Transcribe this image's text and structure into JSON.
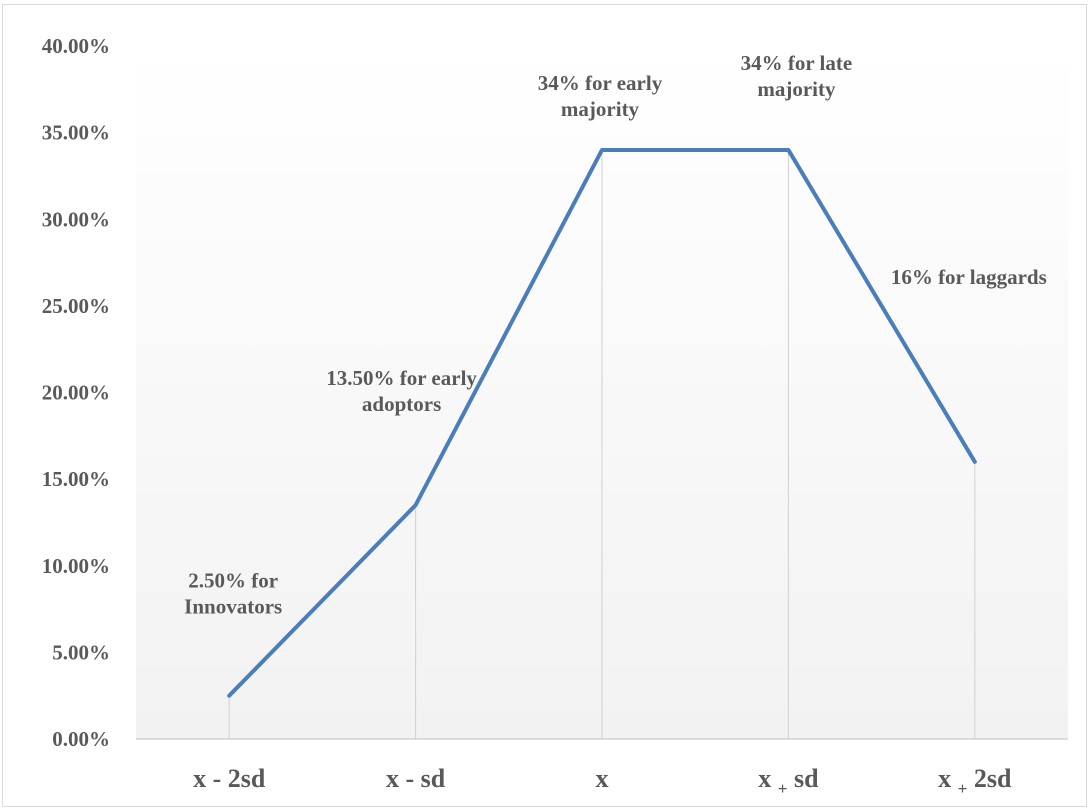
{
  "chart_data": {
    "type": "line",
    "categories": [
      {
        "main": "x - 2sd",
        "op": "",
        "tail": ""
      },
      {
        "main": "x - sd",
        "op": "",
        "tail": ""
      },
      {
        "main": "x",
        "op": "",
        "tail": ""
      },
      {
        "main": "x ",
        "op": "+",
        "tail": " sd"
      },
      {
        "main": "x ",
        "op": "+",
        "tail": " 2sd"
      }
    ],
    "series": [
      {
        "values": [
          0.025,
          0.135,
          0.34,
          0.34,
          0.16
        ],
        "color": "#4a7ebb",
        "data_labels": [
          [
            "2.50% for",
            "Innovators"
          ],
          [
            "13.50% for early",
            "adoptors"
          ],
          [
            "34% for early",
            "majority"
          ],
          [
            "34% for late",
            "majority"
          ],
          [
            "16% for laggards"
          ]
        ]
      }
    ],
    "ylim": [
      0,
      0.4
    ],
    "ytick_step": 0.05,
    "ytick_labels": [
      "0.00%",
      "5.00%",
      "10.00%",
      "15.00%",
      "20.00%",
      "25.00%",
      "30.00%",
      "35.00%",
      "40.00%"
    ],
    "drop_lines": true,
    "grid": false,
    "legend": "none",
    "background_gradient": [
      "#ffffff",
      "#f2f2f2"
    ],
    "title": "",
    "xlabel": "",
    "ylabel": ""
  }
}
